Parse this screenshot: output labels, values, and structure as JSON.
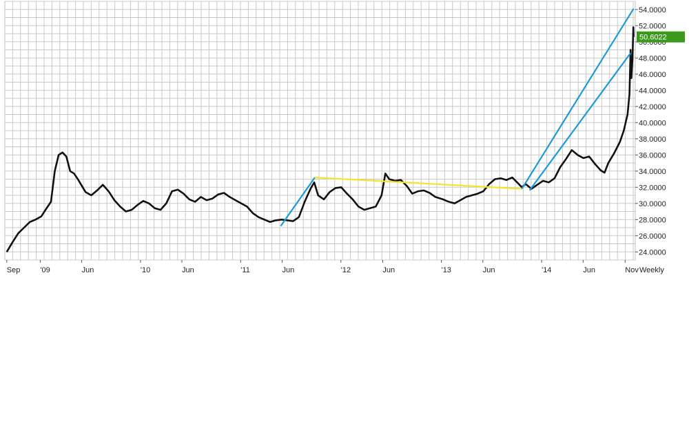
{
  "chart_data": {
    "type": "line",
    "title": "",
    "xlabel": "",
    "ylabel": "",
    "period_label": "Weekly",
    "ylim": [
      23,
      55
    ],
    "y_ticks": [
      "24.0000",
      "26.0000",
      "28.0000",
      "30.0000",
      "32.0000",
      "34.0000",
      "36.0000",
      "38.0000",
      "40.0000",
      "42.0000",
      "44.0000",
      "46.0000",
      "48.0000",
      "50.0000",
      "52.0000",
      "54.0000"
    ],
    "y_tick_values": [
      24,
      26,
      28,
      30,
      32,
      34,
      36,
      38,
      40,
      42,
      44,
      46,
      48,
      50,
      52,
      54
    ],
    "x_ticks": [
      {
        "label": "Sep",
        "date": "2008-09-01"
      },
      {
        "label": "'09",
        "date": "2009-01-01"
      },
      {
        "label": "Jun",
        "date": "2009-06-01"
      },
      {
        "label": "'10",
        "date": "2010-01-01"
      },
      {
        "label": "Jun",
        "date": "2010-06-01"
      },
      {
        "label": "'11",
        "date": "2011-01-01"
      },
      {
        "label": "Jun",
        "date": "2011-06-01"
      },
      {
        "label": "'12",
        "date": "2012-01-01"
      },
      {
        "label": "Jun",
        "date": "2012-06-01"
      },
      {
        "label": "'13",
        "date": "2013-01-01"
      },
      {
        "label": "Jun",
        "date": "2013-06-01"
      },
      {
        "label": "'14",
        "date": "2014-01-01"
      },
      {
        "label": "Jun",
        "date": "2014-06-01"
      },
      {
        "label": "Nov",
        "date": "2014-11-01"
      }
    ],
    "xlim": [
      "2008-08-25",
      "2014-12-08"
    ],
    "last_price": "50.6022",
    "last_price_value": 50.6022,
    "colors": {
      "price": "#111111",
      "grid": "#c8c8c8",
      "blue_trend": "#1a9ad6",
      "yellow_trend": "#f2e52a",
      "badge": "#3b9a1c"
    },
    "series": [
      {
        "points": [
          [
            "2008-09-01",
            24.0
          ],
          [
            "2008-09-22",
            25.2
          ],
          [
            "2008-10-13",
            26.3
          ],
          [
            "2008-11-03",
            27.0
          ],
          [
            "2008-11-24",
            27.7
          ],
          [
            "2008-12-15",
            28.0
          ],
          [
            "2009-01-05",
            28.4
          ],
          [
            "2009-01-26",
            29.5
          ],
          [
            "2009-02-09",
            30.2
          ],
          [
            "2009-02-23",
            34.0
          ],
          [
            "2009-03-09",
            36.0
          ],
          [
            "2009-03-23",
            36.3
          ],
          [
            "2009-04-06",
            35.8
          ],
          [
            "2009-04-20",
            34.0
          ],
          [
            "2009-05-04",
            33.7
          ],
          [
            "2009-05-18",
            33.0
          ],
          [
            "2009-06-01",
            32.2
          ],
          [
            "2009-06-15",
            31.4
          ],
          [
            "2009-07-06",
            31.0
          ],
          [
            "2009-07-27",
            31.6
          ],
          [
            "2009-08-17",
            32.3
          ],
          [
            "2009-09-07",
            31.5
          ],
          [
            "2009-09-28",
            30.4
          ],
          [
            "2009-10-19",
            29.6
          ],
          [
            "2009-11-09",
            29.0
          ],
          [
            "2009-11-30",
            29.2
          ],
          [
            "2009-12-21",
            29.8
          ],
          [
            "2010-01-11",
            30.3
          ],
          [
            "2010-02-01",
            30.0
          ],
          [
            "2010-02-22",
            29.4
          ],
          [
            "2010-03-15",
            29.2
          ],
          [
            "2010-04-05",
            30.0
          ],
          [
            "2010-04-26",
            31.5
          ],
          [
            "2010-05-17",
            31.7
          ],
          [
            "2010-06-07",
            31.2
          ],
          [
            "2010-06-28",
            30.5
          ],
          [
            "2010-07-19",
            30.2
          ],
          [
            "2010-08-09",
            30.8
          ],
          [
            "2010-08-30",
            30.4
          ],
          [
            "2010-09-20",
            30.6
          ],
          [
            "2010-10-11",
            31.1
          ],
          [
            "2010-11-01",
            31.3
          ],
          [
            "2010-11-22",
            30.8
          ],
          [
            "2010-12-13",
            30.4
          ],
          [
            "2011-01-03",
            30.0
          ],
          [
            "2011-01-24",
            29.6
          ],
          [
            "2011-02-14",
            28.8
          ],
          [
            "2011-03-07",
            28.3
          ],
          [
            "2011-03-28",
            28.0
          ],
          [
            "2011-04-18",
            27.7
          ],
          [
            "2011-05-09",
            27.9
          ],
          [
            "2011-05-30",
            28.0
          ],
          [
            "2011-06-20",
            27.9
          ],
          [
            "2011-07-11",
            27.8
          ],
          [
            "2011-08-01",
            28.3
          ],
          [
            "2011-08-22",
            30.2
          ],
          [
            "2011-09-12",
            31.8
          ],
          [
            "2011-09-26",
            32.6
          ],
          [
            "2011-10-10",
            31.0
          ],
          [
            "2011-10-31",
            30.5
          ],
          [
            "2011-11-21",
            31.4
          ],
          [
            "2011-12-12",
            31.9
          ],
          [
            "2012-01-02",
            32.0
          ],
          [
            "2012-01-23",
            31.2
          ],
          [
            "2012-02-13",
            30.5
          ],
          [
            "2012-03-05",
            29.6
          ],
          [
            "2012-03-26",
            29.2
          ],
          [
            "2012-04-16",
            29.4
          ],
          [
            "2012-05-07",
            29.6
          ],
          [
            "2012-05-28",
            31.0
          ],
          [
            "2012-06-11",
            33.7
          ],
          [
            "2012-06-25",
            33.0
          ],
          [
            "2012-07-16",
            32.8
          ],
          [
            "2012-08-06",
            32.9
          ],
          [
            "2012-08-27",
            32.2
          ],
          [
            "2012-09-17",
            31.2
          ],
          [
            "2012-10-08",
            31.5
          ],
          [
            "2012-10-29",
            31.6
          ],
          [
            "2012-11-19",
            31.3
          ],
          [
            "2012-12-10",
            30.8
          ],
          [
            "2013-01-07",
            30.5
          ],
          [
            "2013-01-28",
            30.2
          ],
          [
            "2013-02-18",
            30.0
          ],
          [
            "2013-03-11",
            30.4
          ],
          [
            "2013-04-01",
            30.8
          ],
          [
            "2013-04-22",
            31.0
          ],
          [
            "2013-05-13",
            31.2
          ],
          [
            "2013-06-03",
            31.5
          ],
          [
            "2013-06-24",
            32.4
          ],
          [
            "2013-07-15",
            33.0
          ],
          [
            "2013-08-05",
            33.1
          ],
          [
            "2013-08-26",
            32.9
          ],
          [
            "2013-09-16",
            33.2
          ],
          [
            "2013-10-07",
            32.5
          ],
          [
            "2013-10-21",
            32.0
          ],
          [
            "2013-11-04",
            32.4
          ],
          [
            "2013-11-25",
            31.8
          ],
          [
            "2013-12-16",
            32.3
          ],
          [
            "2014-01-06",
            32.8
          ],
          [
            "2014-01-27",
            32.6
          ],
          [
            "2014-02-17",
            33.1
          ],
          [
            "2014-03-10",
            34.5
          ],
          [
            "2014-03-31",
            35.5
          ],
          [
            "2014-04-21",
            36.6
          ],
          [
            "2014-05-12",
            36.0
          ],
          [
            "2014-06-02",
            35.6
          ],
          [
            "2014-06-23",
            35.8
          ],
          [
            "2014-07-14",
            34.9
          ],
          [
            "2014-08-04",
            34.1
          ],
          [
            "2014-08-18",
            33.8
          ],
          [
            "2014-09-01",
            35.0
          ],
          [
            "2014-09-22",
            36.2
          ],
          [
            "2014-10-13",
            37.6
          ],
          [
            "2014-10-27",
            39.0
          ],
          [
            "2014-11-10",
            41.0
          ],
          [
            "2014-11-17",
            43.5
          ],
          [
            "2014-11-21",
            49.0
          ],
          [
            "2014-11-24",
            45.5
          ],
          [
            "2014-11-26",
            46.8
          ],
          [
            "2014-11-28",
            47.8
          ],
          [
            "2014-12-01",
            51.8
          ],
          [
            "2014-12-02",
            50.6
          ]
        ]
      }
    ],
    "annotations": [
      {
        "kind": "trendline",
        "color": "blue",
        "from": [
          "2011-05-27",
          27.2
        ],
        "to": [
          "2011-09-28",
          33.2
        ]
      },
      {
        "kind": "trendline",
        "color": "yellow",
        "from": [
          "2011-09-28",
          33.2
        ],
        "to": [
          "2013-10-21",
          31.8
        ]
      },
      {
        "kind": "trendline",
        "color": "blue",
        "from": [
          "2013-10-21",
          31.8
        ],
        "to": [
          "2014-12-02",
          54.1
        ]
      },
      {
        "kind": "trendline",
        "color": "blue",
        "from": [
          "2013-11-18",
          31.6
        ],
        "to": [
          "2014-11-21",
          48.6
        ]
      }
    ]
  }
}
